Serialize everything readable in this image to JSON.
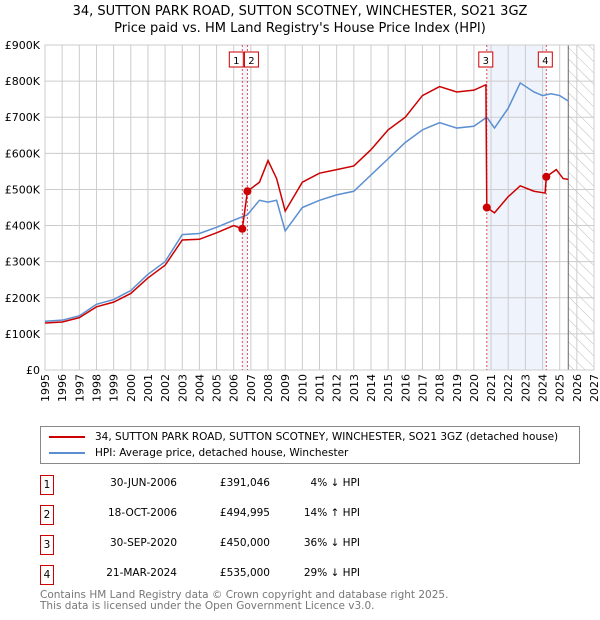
{
  "title": "34, SUTTON PARK ROAD, SUTTON SCOTNEY, WINCHESTER, SO21 3GZ",
  "subtitle": "Price paid vs. HM Land Registry's House Price Index (HPI)",
  "chart_data": {
    "type": "line",
    "ylim": [
      0,
      900000
    ],
    "xlim": [
      1995,
      2027
    ],
    "yticks": [
      "£0",
      "£100K",
      "£200K",
      "£300K",
      "£400K",
      "£500K",
      "£600K",
      "£700K",
      "£800K",
      "£900K"
    ],
    "xticks": [
      "1995",
      "1996",
      "1997",
      "1998",
      "1999",
      "2000",
      "2001",
      "2002",
      "2003",
      "2004",
      "2005",
      "2006",
      "2007",
      "2008",
      "2009",
      "2010",
      "2011",
      "2012",
      "2013",
      "2014",
      "2015",
      "2016",
      "2017",
      "2018",
      "2019",
      "2020",
      "2021",
      "2022",
      "2023",
      "2024",
      "2025",
      "2026",
      "2027"
    ],
    "forecast_from": 2025.5,
    "series": [
      {
        "name": "34, SUTTON PARK ROAD, SUTTON SCOTNEY, WINCHESTER, SO21 3GZ (detached house)",
        "color": "#cc0000",
        "x": [
          1995,
          1996,
          1997,
          1998,
          1999,
          2000,
          2001,
          2002,
          2003,
          2004,
          2005,
          2006,
          2006.5,
          2006.8,
          2007.5,
          2008,
          2008.5,
          2009,
          2010,
          2011,
          2012,
          2013,
          2014,
          2015,
          2016,
          2017,
          2018,
          2019,
          2020,
          2020.7,
          2020.75,
          2021.2,
          2022,
          2022.7,
          2023.5,
          2024.15,
          2024.22,
          2024.8,
          2025.2,
          2025.5
        ],
        "y": [
          130000,
          133000,
          145000,
          175000,
          188000,
          212000,
          255000,
          290000,
          360000,
          362000,
          380000,
          400000,
          391046,
          494995,
          520000,
          580000,
          530000,
          440000,
          520000,
          545000,
          555000,
          565000,
          610000,
          665000,
          700000,
          760000,
          785000,
          770000,
          775000,
          790000,
          450000,
          435000,
          480000,
          510000,
          495000,
          490000,
          535000,
          555000,
          530000,
          528000
        ]
      },
      {
        "name": "HPI: Average price, detached house, Winchester",
        "color": "#5b8fd1",
        "x": [
          1995,
          1996,
          1997,
          1998,
          1999,
          2000,
          2001,
          2002,
          2003,
          2004,
          2005,
          2006,
          2006.8,
          2007.5,
          2008,
          2008.5,
          2009,
          2010,
          2011,
          2012,
          2013,
          2014,
          2015,
          2016,
          2017,
          2018,
          2019,
          2020,
          2020.75,
          2021.2,
          2022,
          2022.7,
          2023.5,
          2024,
          2024.5,
          2025,
          2025.5
        ],
        "y": [
          135000,
          138000,
          150000,
          182000,
          195000,
          220000,
          265000,
          300000,
          375000,
          378000,
          395000,
          415000,
          430000,
          470000,
          465000,
          470000,
          385000,
          450000,
          470000,
          485000,
          495000,
          540000,
          585000,
          630000,
          665000,
          685000,
          670000,
          675000,
          700000,
          670000,
          725000,
          795000,
          770000,
          760000,
          765000,
          760000,
          745000
        ]
      }
    ],
    "sales": [
      {
        "label": "1",
        "date": "30-JUN-2006",
        "x": 2006.5,
        "price": "£391,046",
        "value": 391046,
        "hpi": "4% ↓ HPI"
      },
      {
        "label": "2",
        "date": "18-OCT-2006",
        "x": 2006.8,
        "price": "£494,995",
        "value": 494995,
        "hpi": "14% ↑ HPI"
      },
      {
        "label": "3",
        "date": "30-SEP-2020",
        "x": 2020.75,
        "price": "£450,000",
        "value": 450000,
        "hpi": "36% ↓ HPI"
      },
      {
        "label": "4",
        "date": "21-MAR-2024",
        "x": 2024.22,
        "price": "£535,000",
        "value": 535000,
        "hpi": "29% ↓ HPI"
      }
    ]
  },
  "legend": {
    "property": "34, SUTTON PARK ROAD, SUTTON SCOTNEY, WINCHESTER, SO21 3GZ (detached house)",
    "hpi": "HPI: Average price, detached house, Winchester"
  },
  "footer": {
    "line1": "Contains HM Land Registry data © Crown copyright and database right 2025.",
    "line2": "This data is licensed under the Open Government Licence v3.0."
  }
}
